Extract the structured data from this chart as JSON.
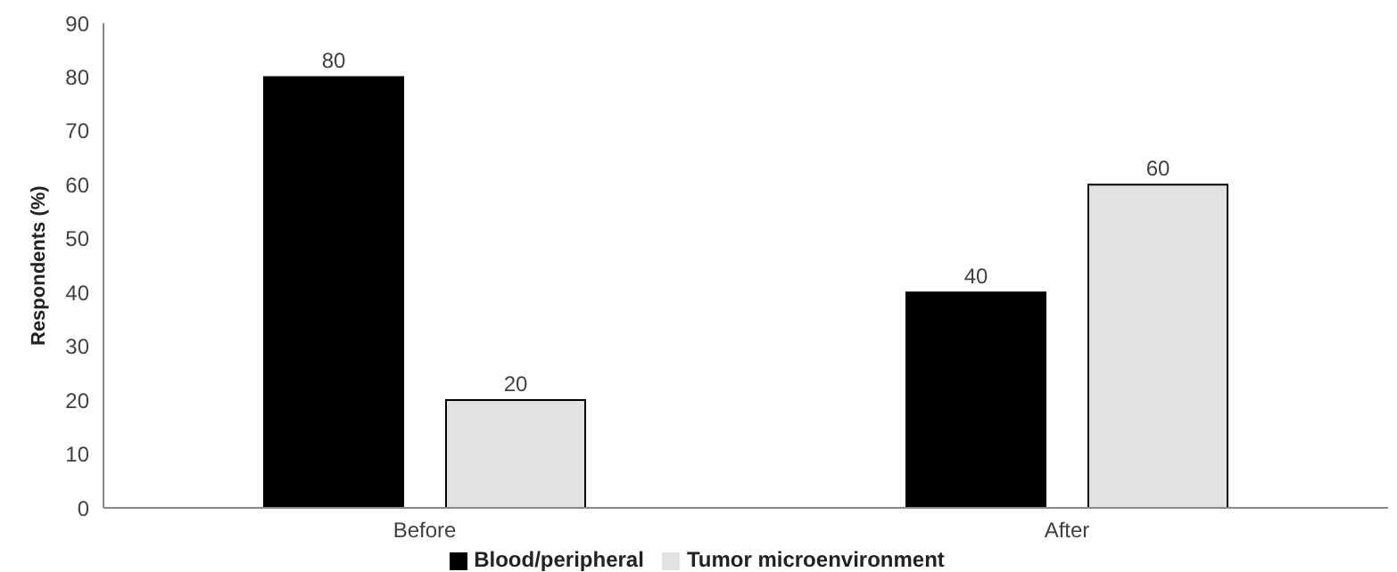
{
  "chart_data": {
    "type": "bar",
    "ylabel": "Respondents (%)",
    "categories": [
      "Before",
      "After"
    ],
    "series": [
      {
        "name": "Blood/peripheral",
        "color": "#000000",
        "values": [
          80,
          40
        ]
      },
      {
        "name": "Tumor microenvironment",
        "color": "#e2e2e2",
        "values": [
          20,
          60
        ]
      }
    ],
    "ylim": [
      0,
      90
    ],
    "yticks": [
      0,
      10,
      20,
      30,
      40,
      50,
      60,
      70,
      80,
      90
    ],
    "grid": false,
    "legend": "bottom",
    "data_labels": true
  }
}
